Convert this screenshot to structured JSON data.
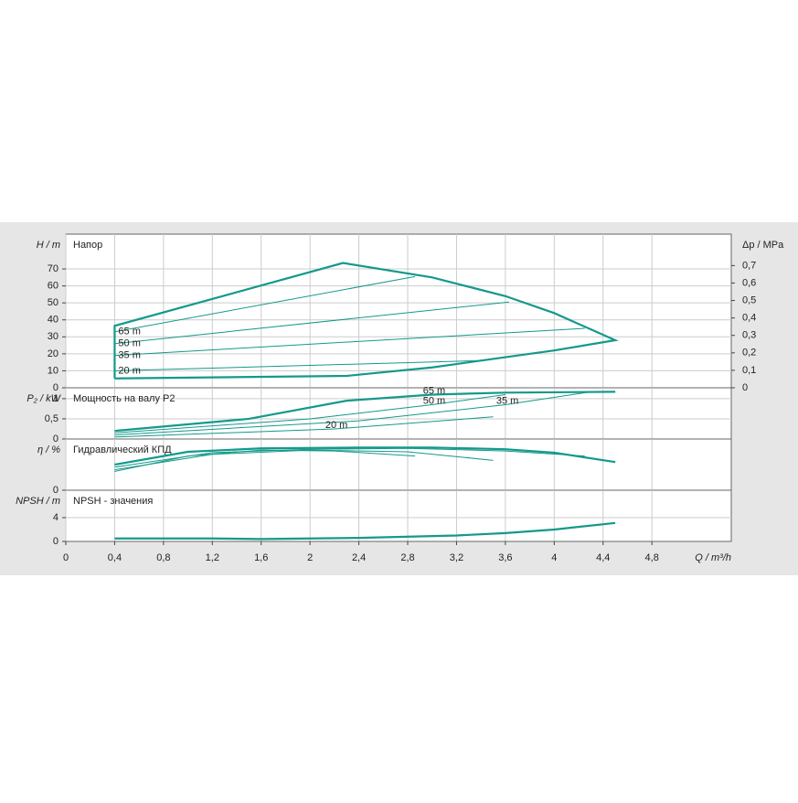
{
  "chart_data": [
    {
      "type": "line",
      "title": "Напор",
      "ylabel": "H / m",
      "y2label": "Δp / MPa",
      "ylim": [
        0,
        90.5
      ],
      "yticks": [
        0,
        10,
        20,
        30,
        40,
        50,
        60,
        70
      ],
      "y2lim": [
        0,
        0.88
      ],
      "y2ticks": [
        0,
        {
          "value": 0.1,
          "label": "0,1"
        },
        {
          "value": 0.2,
          "label": "0,2"
        },
        {
          "value": 0.3,
          "label": "0,3"
        },
        {
          "value": 0.4,
          "label": "0,4"
        },
        {
          "value": 0.5,
          "label": "0,5"
        },
        {
          "value": 0.6,
          "label": "0,6"
        },
        {
          "value": 0.7,
          "label": "0,7"
        }
      ],
      "grid": true,
      "label_at": "start",
      "series": [
        {
          "color": "#14998a",
          "bold": true,
          "x": [
            0.4,
            0.4,
            2.27,
            3.0,
            3.6,
            4.0,
            4.5,
            4.0,
            3.6,
            3.0,
            2.3,
            0.4
          ],
          "values": [
            5.5,
            36.5,
            73.5,
            65,
            54,
            44,
            28,
            22,
            18,
            12,
            7,
            5.5
          ]
        },
        {
          "name": "65 m",
          "color": "#14998a",
          "x": [
            0.4,
            2.86
          ],
          "values": [
            33,
            65.5
          ]
        },
        {
          "name": "50 m",
          "color": "#14998a",
          "x": [
            0.4,
            3.63
          ],
          "values": [
            26,
            50.5
          ]
        },
        {
          "name": "35 m",
          "color": "#14998a",
          "x": [
            0.4,
            4.25
          ],
          "values": [
            19,
            35
          ]
        },
        {
          "name": "20 m",
          "color": "#14998a",
          "x": [
            0.4,
            3.4
          ],
          "values": [
            10,
            16
          ]
        }
      ]
    },
    {
      "type": "line",
      "title": "Мощность на валу P2",
      "ylabel": "P₂ / kW",
      "ylim": [
        0,
        1.27
      ],
      "yticks": [
        0,
        {
          "value": 0.5,
          "label": "0,5"
        },
        1
      ],
      "grid": true,
      "label_at": "middle",
      "series": [
        {
          "name": "65 m",
          "color": "#14998a",
          "bold": true,
          "x": [
            0.4,
            1.5,
            2.3,
            3.0,
            3.6,
            4.5
          ],
          "values": [
            0.2,
            0.5,
            0.95,
            1.1,
            1.15,
            1.17
          ]
        },
        {
          "name": "50 m",
          "color": "#14998a",
          "x": [
            0.4,
            2.0,
            3.0,
            3.6
          ],
          "values": [
            0.15,
            0.5,
            0.85,
            1.1
          ]
        },
        {
          "name": "35 m",
          "color": "#14998a",
          "x": [
            0.4,
            2.4,
            3.6,
            4.3
          ],
          "values": [
            0.1,
            0.45,
            0.85,
            1.17
          ]
        },
        {
          "name": "20 m",
          "color": "#14998a",
          "x": [
            0.4,
            2.2,
            3.5
          ],
          "values": [
            0.05,
            0.25,
            0.55
          ]
        }
      ]
    },
    {
      "type": "line",
      "title": "Гидравлический КПД",
      "ylabel": "η / %",
      "ylim": [
        0,
        60
      ],
      "yticks": [
        0
      ],
      "grid": true,
      "series": [
        {
          "color": "#14998a",
          "bold": true,
          "x": [
            0.4,
            1.0,
            1.6,
            2.4,
            3.0,
            3.6,
            4.0,
            4.5
          ],
          "values": [
            30,
            45,
            49,
            50,
            50,
            48,
            44,
            33
          ]
        },
        {
          "color": "#14998a",
          "x": [
            0.4,
            1.2,
            2.0,
            2.8,
            3.6,
            4.25
          ],
          "values": [
            27,
            44,
            48,
            49,
            46,
            40
          ]
        },
        {
          "color": "#14998a",
          "x": [
            0.4,
            1.2,
            2.0,
            2.8,
            3.5
          ],
          "values": [
            24,
            42,
            47,
            45,
            35
          ]
        },
        {
          "color": "#14998a",
          "x": [
            0.4,
            1.0,
            1.6,
            2.2,
            2.86
          ],
          "values": [
            22,
            40,
            47,
            46,
            40
          ]
        }
      ]
    },
    {
      "type": "line",
      "title": "NPSH - значения",
      "ylabel": "NPSH / m",
      "ylim": [
        0,
        8.6
      ],
      "yticks": [
        0,
        4
      ],
      "grid": true,
      "xlabel": "Q / m³/h",
      "xlim": [
        0,
        5.45
      ],
      "xticks": [
        0,
        {
          "value": 0.4,
          "label": "0,4"
        },
        {
          "value": 0.8,
          "label": "0,8"
        },
        {
          "value": 1.2,
          "label": "1,2"
        },
        {
          "value": 1.6,
          "label": "1,6"
        },
        2,
        {
          "value": 2.4,
          "label": "2,4"
        },
        {
          "value": 2.8,
          "label": "2,8"
        },
        {
          "value": 3.2,
          "label": "3,2"
        },
        {
          "value": 3.6,
          "label": "3,6"
        },
        4,
        {
          "value": 4.4,
          "label": "4,4"
        },
        {
          "value": 4.8,
          "label": "4,8"
        }
      ],
      "series": [
        {
          "color": "#14998a",
          "bold": true,
          "x": [
            0.4,
            1.2,
            1.6,
            2.4,
            3.2,
            3.6,
            4.0,
            4.5
          ],
          "values": [
            0.5,
            0.5,
            0.4,
            0.6,
            1.0,
            1.4,
            2.0,
            3.1
          ]
        }
      ]
    }
  ]
}
